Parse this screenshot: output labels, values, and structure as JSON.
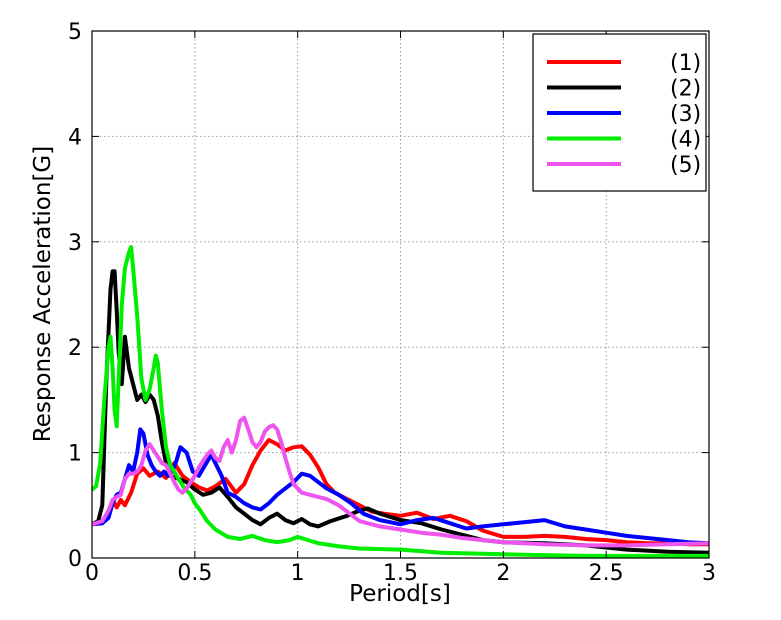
{
  "chart_data": {
    "type": "line",
    "xlabel": "Period[s]",
    "ylabel": "Response Acceleration[G]",
    "xlim": [
      0,
      3
    ],
    "ylim": [
      0,
      5
    ],
    "xticks": [
      "0",
      "0.5",
      "1",
      "1.5",
      "2",
      "2.5",
      "3"
    ],
    "yticks": [
      "0",
      "1",
      "2",
      "3",
      "4",
      "5"
    ],
    "grid": true,
    "legend_position": "top-right",
    "series": [
      {
        "name": "(1)",
        "color": "#ff0000",
        "points": [
          [
            0.0,
            0.32
          ],
          [
            0.05,
            0.33
          ],
          [
            0.08,
            0.42
          ],
          [
            0.1,
            0.55
          ],
          [
            0.12,
            0.48
          ],
          [
            0.14,
            0.55
          ],
          [
            0.16,
            0.5
          ],
          [
            0.19,
            0.62
          ],
          [
            0.22,
            0.8
          ],
          [
            0.25,
            0.85
          ],
          [
            0.28,
            0.78
          ],
          [
            0.32,
            0.82
          ],
          [
            0.36,
            0.76
          ],
          [
            0.4,
            0.9
          ],
          [
            0.44,
            0.78
          ],
          [
            0.48,
            0.72
          ],
          [
            0.52,
            0.67
          ],
          [
            0.56,
            0.64
          ],
          [
            0.6,
            0.68
          ],
          [
            0.65,
            0.75
          ],
          [
            0.7,
            0.62
          ],
          [
            0.74,
            0.7
          ],
          [
            0.78,
            0.88
          ],
          [
            0.82,
            1.02
          ],
          [
            0.86,
            1.12
          ],
          [
            0.9,
            1.08
          ],
          [
            0.94,
            1.02
          ],
          [
            0.98,
            1.05
          ],
          [
            1.02,
            1.06
          ],
          [
            1.06,
            0.98
          ],
          [
            1.1,
            0.86
          ],
          [
            1.14,
            0.7
          ],
          [
            1.18,
            0.62
          ],
          [
            1.24,
            0.56
          ],
          [
            1.3,
            0.5
          ],
          [
            1.36,
            0.44
          ],
          [
            1.42,
            0.42
          ],
          [
            1.5,
            0.4
          ],
          [
            1.58,
            0.43
          ],
          [
            1.66,
            0.37
          ],
          [
            1.74,
            0.4
          ],
          [
            1.82,
            0.35
          ],
          [
            1.9,
            0.26
          ],
          [
            2.0,
            0.2
          ],
          [
            2.1,
            0.2
          ],
          [
            2.2,
            0.21
          ],
          [
            2.3,
            0.2
          ],
          [
            2.4,
            0.18
          ],
          [
            2.5,
            0.17
          ],
          [
            2.6,
            0.15
          ],
          [
            2.7,
            0.14
          ],
          [
            2.8,
            0.14
          ],
          [
            2.9,
            0.13
          ],
          [
            3.0,
            0.13
          ]
        ]
      },
      {
        "name": "(2)",
        "color": "#000000",
        "points": [
          [
            0.0,
            0.32
          ],
          [
            0.03,
            0.35
          ],
          [
            0.05,
            0.5
          ],
          [
            0.07,
            1.7
          ],
          [
            0.09,
            2.55
          ],
          [
            0.1,
            2.72
          ],
          [
            0.11,
            2.72
          ],
          [
            0.12,
            2.35
          ],
          [
            0.13,
            1.95
          ],
          [
            0.145,
            1.65
          ],
          [
            0.16,
            2.1
          ],
          [
            0.18,
            1.8
          ],
          [
            0.2,
            1.65
          ],
          [
            0.22,
            1.5
          ],
          [
            0.24,
            1.55
          ],
          [
            0.26,
            1.48
          ],
          [
            0.28,
            1.55
          ],
          [
            0.3,
            1.5
          ],
          [
            0.32,
            1.35
          ],
          [
            0.34,
            1.1
          ],
          [
            0.36,
            0.9
          ],
          [
            0.38,
            0.78
          ],
          [
            0.42,
            0.75
          ],
          [
            0.46,
            0.72
          ],
          [
            0.5,
            0.65
          ],
          [
            0.54,
            0.6
          ],
          [
            0.58,
            0.62
          ],
          [
            0.62,
            0.67
          ],
          [
            0.66,
            0.58
          ],
          [
            0.7,
            0.48
          ],
          [
            0.74,
            0.42
          ],
          [
            0.78,
            0.36
          ],
          [
            0.82,
            0.32
          ],
          [
            0.86,
            0.38
          ],
          [
            0.9,
            0.42
          ],
          [
            0.94,
            0.36
          ],
          [
            0.98,
            0.33
          ],
          [
            1.02,
            0.37
          ],
          [
            1.06,
            0.32
          ],
          [
            1.1,
            0.3
          ],
          [
            1.16,
            0.35
          ],
          [
            1.24,
            0.4
          ],
          [
            1.3,
            0.45
          ],
          [
            1.34,
            0.47
          ],
          [
            1.4,
            0.42
          ],
          [
            1.5,
            0.36
          ],
          [
            1.6,
            0.33
          ],
          [
            1.7,
            0.27
          ],
          [
            1.8,
            0.22
          ],
          [
            1.9,
            0.17
          ],
          [
            2.0,
            0.15
          ],
          [
            2.2,
            0.14
          ],
          [
            2.4,
            0.12
          ],
          [
            2.6,
            0.08
          ],
          [
            2.8,
            0.06
          ],
          [
            3.0,
            0.05
          ]
        ]
      },
      {
        "name": "(3)",
        "color": "#0000ff",
        "points": [
          [
            0.0,
            0.32
          ],
          [
            0.05,
            0.33
          ],
          [
            0.08,
            0.38
          ],
          [
            0.1,
            0.52
          ],
          [
            0.12,
            0.6
          ],
          [
            0.14,
            0.62
          ],
          [
            0.16,
            0.75
          ],
          [
            0.18,
            0.88
          ],
          [
            0.2,
            0.82
          ],
          [
            0.22,
            1.0
          ],
          [
            0.235,
            1.22
          ],
          [
            0.25,
            1.18
          ],
          [
            0.27,
            0.98
          ],
          [
            0.29,
            0.88
          ],
          [
            0.31,
            0.82
          ],
          [
            0.33,
            0.78
          ],
          [
            0.35,
            0.82
          ],
          [
            0.37,
            0.78
          ],
          [
            0.39,
            0.82
          ],
          [
            0.41,
            0.92
          ],
          [
            0.43,
            1.05
          ],
          [
            0.46,
            1.0
          ],
          [
            0.49,
            0.82
          ],
          [
            0.52,
            0.78
          ],
          [
            0.55,
            0.88
          ],
          [
            0.58,
            0.98
          ],
          [
            0.6,
            0.9
          ],
          [
            0.63,
            0.78
          ],
          [
            0.66,
            0.62
          ],
          [
            0.7,
            0.58
          ],
          [
            0.74,
            0.52
          ],
          [
            0.78,
            0.48
          ],
          [
            0.82,
            0.46
          ],
          [
            0.86,
            0.52
          ],
          [
            0.9,
            0.6
          ],
          [
            0.94,
            0.66
          ],
          [
            0.98,
            0.72
          ],
          [
            1.02,
            0.8
          ],
          [
            1.06,
            0.78
          ],
          [
            1.1,
            0.72
          ],
          [
            1.14,
            0.66
          ],
          [
            1.2,
            0.6
          ],
          [
            1.26,
            0.52
          ],
          [
            1.32,
            0.42
          ],
          [
            1.4,
            0.36
          ],
          [
            1.5,
            0.32
          ],
          [
            1.58,
            0.36
          ],
          [
            1.66,
            0.38
          ],
          [
            1.74,
            0.33
          ],
          [
            1.82,
            0.28
          ],
          [
            1.9,
            0.3
          ],
          [
            2.0,
            0.32
          ],
          [
            2.1,
            0.34
          ],
          [
            2.2,
            0.36
          ],
          [
            2.3,
            0.3
          ],
          [
            2.4,
            0.27
          ],
          [
            2.5,
            0.24
          ],
          [
            2.6,
            0.21
          ],
          [
            2.7,
            0.19
          ],
          [
            2.8,
            0.17
          ],
          [
            2.9,
            0.15
          ],
          [
            3.0,
            0.14
          ]
        ]
      },
      {
        "name": "(4)",
        "color": "#00ee00",
        "points": [
          [
            0.0,
            0.65
          ],
          [
            0.02,
            0.68
          ],
          [
            0.04,
            0.9
          ],
          [
            0.06,
            1.5
          ],
          [
            0.08,
            2.0
          ],
          [
            0.09,
            2.1
          ],
          [
            0.1,
            1.8
          ],
          [
            0.11,
            1.4
          ],
          [
            0.12,
            1.25
          ],
          [
            0.13,
            1.7
          ],
          [
            0.145,
            2.4
          ],
          [
            0.16,
            2.75
          ],
          [
            0.18,
            2.9
          ],
          [
            0.19,
            2.95
          ],
          [
            0.2,
            2.75
          ],
          [
            0.22,
            2.3
          ],
          [
            0.24,
            1.7
          ],
          [
            0.26,
            1.5
          ],
          [
            0.28,
            1.6
          ],
          [
            0.3,
            1.8
          ],
          [
            0.31,
            1.92
          ],
          [
            0.32,
            1.85
          ],
          [
            0.34,
            1.4
          ],
          [
            0.36,
            1.05
          ],
          [
            0.38,
            0.88
          ],
          [
            0.4,
            0.82
          ],
          [
            0.42,
            0.75
          ],
          [
            0.45,
            0.66
          ],
          [
            0.48,
            0.6
          ],
          [
            0.5,
            0.52
          ],
          [
            0.52,
            0.47
          ],
          [
            0.56,
            0.35
          ],
          [
            0.6,
            0.27
          ],
          [
            0.66,
            0.2
          ],
          [
            0.72,
            0.18
          ],
          [
            0.78,
            0.21
          ],
          [
            0.84,
            0.17
          ],
          [
            0.9,
            0.15
          ],
          [
            0.96,
            0.17
          ],
          [
            1.0,
            0.2
          ],
          [
            1.05,
            0.17
          ],
          [
            1.1,
            0.14
          ],
          [
            1.2,
            0.11
          ],
          [
            1.3,
            0.09
          ],
          [
            1.5,
            0.08
          ],
          [
            1.7,
            0.05
          ],
          [
            1.9,
            0.04
          ],
          [
            2.1,
            0.03
          ],
          [
            2.4,
            0.02
          ],
          [
            2.7,
            0.02
          ],
          [
            3.0,
            0.02
          ]
        ]
      },
      {
        "name": "(5)",
        "color": "#ee55ee",
        "points": [
          [
            0.0,
            0.32
          ],
          [
            0.05,
            0.35
          ],
          [
            0.08,
            0.45
          ],
          [
            0.1,
            0.55
          ],
          [
            0.12,
            0.58
          ],
          [
            0.14,
            0.6
          ],
          [
            0.16,
            0.75
          ],
          [
            0.18,
            0.8
          ],
          [
            0.2,
            0.8
          ],
          [
            0.22,
            0.82
          ],
          [
            0.24,
            0.88
          ],
          [
            0.26,
            1.02
          ],
          [
            0.28,
            1.08
          ],
          [
            0.3,
            1.02
          ],
          [
            0.32,
            0.96
          ],
          [
            0.34,
            0.9
          ],
          [
            0.36,
            0.88
          ],
          [
            0.38,
            0.8
          ],
          [
            0.4,
            0.72
          ],
          [
            0.42,
            0.65
          ],
          [
            0.44,
            0.62
          ],
          [
            0.46,
            0.66
          ],
          [
            0.48,
            0.72
          ],
          [
            0.5,
            0.78
          ],
          [
            0.52,
            0.86
          ],
          [
            0.54,
            0.92
          ],
          [
            0.56,
            0.98
          ],
          [
            0.58,
            1.02
          ],
          [
            0.6,
            0.95
          ],
          [
            0.62,
            0.92
          ],
          [
            0.64,
            1.05
          ],
          [
            0.66,
            1.12
          ],
          [
            0.68,
            1.0
          ],
          [
            0.7,
            1.12
          ],
          [
            0.72,
            1.3
          ],
          [
            0.74,
            1.33
          ],
          [
            0.76,
            1.22
          ],
          [
            0.78,
            1.1
          ],
          [
            0.8,
            1.05
          ],
          [
            0.82,
            1.1
          ],
          [
            0.84,
            1.2
          ],
          [
            0.86,
            1.24
          ],
          [
            0.88,
            1.26
          ],
          [
            0.9,
            1.22
          ],
          [
            0.92,
            1.1
          ],
          [
            0.94,
            0.95
          ],
          [
            0.96,
            0.82
          ],
          [
            0.98,
            0.7
          ],
          [
            1.02,
            0.62
          ],
          [
            1.06,
            0.6
          ],
          [
            1.1,
            0.58
          ],
          [
            1.14,
            0.56
          ],
          [
            1.2,
            0.5
          ],
          [
            1.3,
            0.35
          ],
          [
            1.4,
            0.3
          ],
          [
            1.5,
            0.27
          ],
          [
            1.6,
            0.24
          ],
          [
            1.7,
            0.22
          ],
          [
            1.8,
            0.19
          ],
          [
            1.9,
            0.17
          ],
          [
            2.0,
            0.15
          ],
          [
            2.2,
            0.13
          ],
          [
            2.4,
            0.12
          ],
          [
            2.6,
            0.12
          ],
          [
            2.8,
            0.13
          ],
          [
            3.0,
            0.14
          ]
        ]
      }
    ]
  }
}
